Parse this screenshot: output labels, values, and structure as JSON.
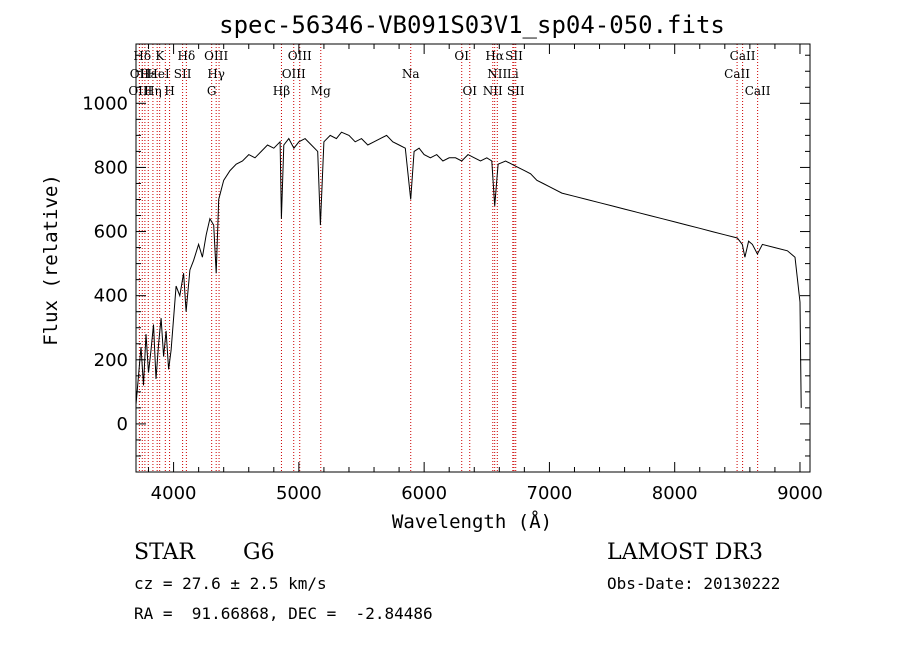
{
  "chart_data": {
    "type": "line",
    "title": "spec-56346-VB091S03V1_sp04-050.fits",
    "xlabel": "Wavelength (Å)",
    "ylabel": "Flux (relative)",
    "xlim": [
      3700,
      9080
    ],
    "ylim": [
      -150,
      1185
    ],
    "xticks": [
      4000,
      5000,
      6000,
      7000,
      8000,
      9000
    ],
    "yticks": [
      0,
      200,
      400,
      600,
      800,
      1000
    ],
    "grid": false,
    "line_color": "#000000",
    "marker_color": "#cc0000",
    "series": [
      {
        "name": "flux",
        "points": [
          [
            3700,
            60
          ],
          [
            3720,
            150
          ],
          [
            3740,
            240
          ],
          [
            3760,
            120
          ],
          [
            3780,
            280
          ],
          [
            3800,
            160
          ],
          [
            3820,
            230
          ],
          [
            3840,
            310
          ],
          [
            3860,
            140
          ],
          [
            3880,
            250
          ],
          [
            3900,
            330
          ],
          [
            3920,
            210
          ],
          [
            3940,
            290
          ],
          [
            3960,
            170
          ],
          [
            3980,
            230
          ],
          [
            4000,
            330
          ],
          [
            4020,
            430
          ],
          [
            4050,
            400
          ],
          [
            4080,
            470
          ],
          [
            4100,
            350
          ],
          [
            4130,
            480
          ],
          [
            4160,
            510
          ],
          [
            4200,
            560
          ],
          [
            4230,
            520
          ],
          [
            4260,
            590
          ],
          [
            4290,
            640
          ],
          [
            4320,
            620
          ],
          [
            4340,
            470
          ],
          [
            4360,
            700
          ],
          [
            4400,
            760
          ],
          [
            4450,
            790
          ],
          [
            4500,
            810
          ],
          [
            4550,
            820
          ],
          [
            4600,
            840
          ],
          [
            4650,
            830
          ],
          [
            4700,
            850
          ],
          [
            4750,
            870
          ],
          [
            4800,
            860
          ],
          [
            4850,
            880
          ],
          [
            4861,
            640
          ],
          [
            4880,
            870
          ],
          [
            4920,
            890
          ],
          [
            4960,
            860
          ],
          [
            5000,
            880
          ],
          [
            5050,
            890
          ],
          [
            5100,
            870
          ],
          [
            5150,
            850
          ],
          [
            5172,
            620
          ],
          [
            5200,
            880
          ],
          [
            5250,
            900
          ],
          [
            5300,
            890
          ],
          [
            5340,
            910
          ],
          [
            5400,
            900
          ],
          [
            5450,
            880
          ],
          [
            5500,
            890
          ],
          [
            5550,
            870
          ],
          [
            5600,
            880
          ],
          [
            5650,
            890
          ],
          [
            5700,
            900
          ],
          [
            5750,
            880
          ],
          [
            5800,
            870
          ],
          [
            5850,
            860
          ],
          [
            5893,
            700
          ],
          [
            5920,
            850
          ],
          [
            5960,
            860
          ],
          [
            6000,
            840
          ],
          [
            6050,
            830
          ],
          [
            6100,
            840
          ],
          [
            6150,
            820
          ],
          [
            6200,
            830
          ],
          [
            6250,
            830
          ],
          [
            6300,
            820
          ],
          [
            6350,
            840
          ],
          [
            6400,
            830
          ],
          [
            6450,
            820
          ],
          [
            6500,
            830
          ],
          [
            6540,
            820
          ],
          [
            6563,
            680
          ],
          [
            6590,
            810
          ],
          [
            6650,
            820
          ],
          [
            6700,
            810
          ],
          [
            6750,
            800
          ],
          [
            6800,
            790
          ],
          [
            6850,
            780
          ],
          [
            6900,
            760
          ],
          [
            6950,
            750
          ],
          [
            7000,
            740
          ],
          [
            7100,
            720
          ],
          [
            7200,
            710
          ],
          [
            7300,
            700
          ],
          [
            7400,
            690
          ],
          [
            7500,
            680
          ],
          [
            7600,
            670
          ],
          [
            7700,
            660
          ],
          [
            7800,
            650
          ],
          [
            7900,
            640
          ],
          [
            8000,
            630
          ],
          [
            8100,
            620
          ],
          [
            8200,
            610
          ],
          [
            8300,
            600
          ],
          [
            8400,
            590
          ],
          [
            8500,
            580
          ],
          [
            8540,
            560
          ],
          [
            8560,
            520
          ],
          [
            8590,
            570
          ],
          [
            8620,
            560
          ],
          [
            8660,
            530
          ],
          [
            8700,
            560
          ],
          [
            8800,
            550
          ],
          [
            8900,
            540
          ],
          [
            8960,
            520
          ],
          [
            8980,
            450
          ],
          [
            9000,
            380
          ],
          [
            9010,
            50
          ]
        ]
      }
    ],
    "line_markers": [
      {
        "label": "Hδ",
        "wl": 3750,
        "row": 0
      },
      {
        "label": "OII",
        "wl": 3727,
        "row": 1
      },
      {
        "label": "OIII",
        "wl": 3735,
        "row": 2
      },
      {
        "label": "Hε",
        "wl": 3800,
        "row": 1
      },
      {
        "label": "Hη",
        "wl": 3835,
        "row": 2
      },
      {
        "label": "K",
        "wl": 3890,
        "row": 0
      },
      {
        "label": "HeI",
        "wl": 3880,
        "row": 1
      },
      {
        "label": "H",
        "wl": 3968,
        "row": 2
      },
      {
        "label": "SII",
        "wl": 4072,
        "row": 1
      },
      {
        "label": "Hδ",
        "wl": 4102,
        "row": 0
      },
      {
        "label": "OIII",
        "wl": 4340,
        "row": 0
      },
      {
        "label": "Hγ",
        "wl": 4340,
        "row": 1
      },
      {
        "label": "G",
        "wl": 4304,
        "row": 2
      },
      {
        "label": "Hβ",
        "wl": 4861,
        "row": 2
      },
      {
        "label": "OIII",
        "wl": 5007,
        "row": 0
      },
      {
        "label": "OIII",
        "wl": 4959,
        "row": 1
      },
      {
        "label": "Mg",
        "wl": 5175,
        "row": 2
      },
      {
        "label": "Na",
        "wl": 5893,
        "row": 1
      },
      {
        "label": "OI",
        "wl": 6300,
        "row": 0
      },
      {
        "label": "OI",
        "wl": 6364,
        "row": 2
      },
      {
        "label": "Hα",
        "wl": 6563,
        "row": 0
      },
      {
        "label": "NII",
        "wl": 6584,
        "row": 1
      },
      {
        "label": "NII",
        "wl": 6548,
        "row": 2
      },
      {
        "label": "SII",
        "wl": 6717,
        "row": 0
      },
      {
        "label": "Li",
        "wl": 6708,
        "row": 1
      },
      {
        "label": "SII",
        "wl": 6731,
        "row": 2
      },
      {
        "label": "CaII",
        "wl": 8542,
        "row": 0
      },
      {
        "label": "CaII",
        "wl": 8498,
        "row": 1
      },
      {
        "label": "CaII",
        "wl": 8662,
        "row": 2
      }
    ],
    "marker_wavelengths": [
      3727,
      3750,
      3771,
      3798,
      3835,
      3869,
      3889,
      3934,
      3968,
      4072,
      4102,
      4304,
      4340,
      4363,
      4861,
      4959,
      5007,
      5175,
      5893,
      6300,
      6364,
      6548,
      6563,
      6584,
      6708,
      6717,
      6731,
      8498,
      8542,
      8662
    ]
  },
  "info": {
    "object_type": "STAR",
    "subclass": "G6",
    "survey": "LAMOST DR3",
    "redshift_line": "cz = 27.6 ± 2.5 km/s",
    "obs_date_line": "Obs-Date: 20130222",
    "coords_line": "RA =  91.66868, DEC =  -2.84486"
  }
}
